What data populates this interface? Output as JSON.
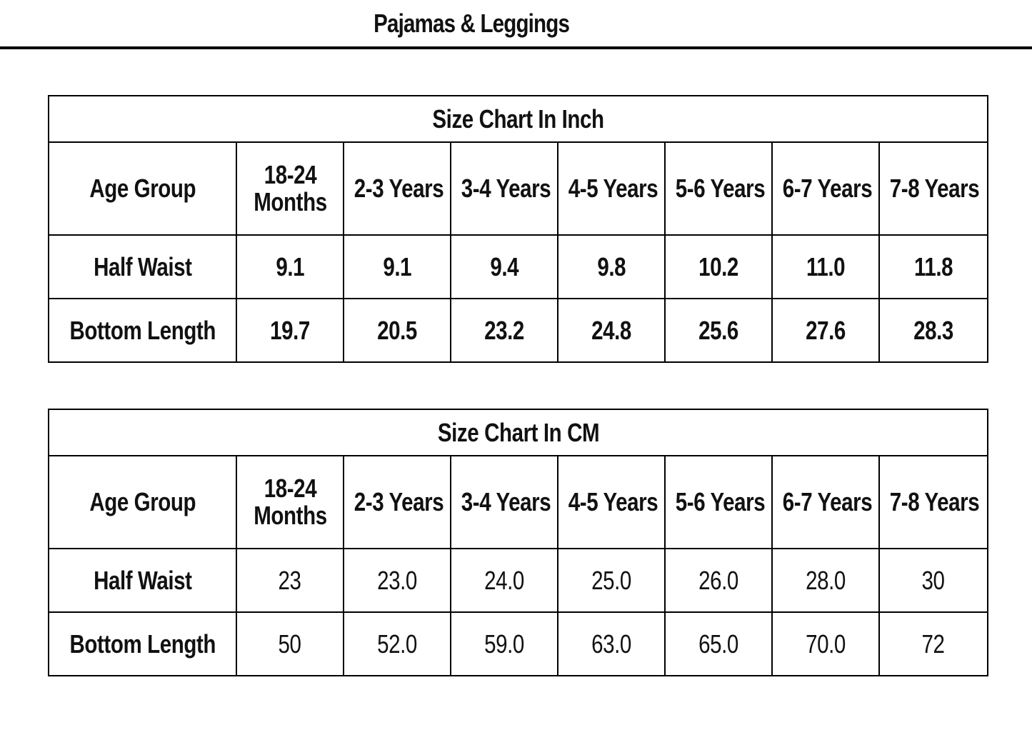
{
  "page_title": "Pajamas & Leggings",
  "tables": [
    {
      "title": "Size Chart In Inch",
      "header_label": "Age Group",
      "columns": [
        {
          "line1": "18-24",
          "line2": "Months"
        },
        {
          "line1": "2-3 Years",
          "line2": ""
        },
        {
          "line1": "3-4 Years",
          "line2": ""
        },
        {
          "line1": "4-5 Years",
          "line2": ""
        },
        {
          "line1": "5-6 Years",
          "line2": ""
        },
        {
          "line1": "6-7 Years",
          "line2": ""
        },
        {
          "line1": "7-8 Years",
          "line2": ""
        }
      ],
      "rows": [
        {
          "label": "Half Waist",
          "values": [
            "9.1",
            "9.1",
            "9.4",
            "9.8",
            "10.2",
            "11.0",
            "11.8"
          ]
        },
        {
          "label": "Bottom Length",
          "values": [
            "19.7",
            "20.5",
            "23.2",
            "24.8",
            "25.6",
            "27.6",
            "28.3"
          ]
        }
      ]
    },
    {
      "title": "Size Chart In CM",
      "header_label": "Age Group",
      "columns": [
        {
          "line1": "18-24",
          "line2": "Months"
        },
        {
          "line1": "2-3 Years",
          "line2": ""
        },
        {
          "line1": "3-4 Years",
          "line2": ""
        },
        {
          "line1": "4-5 Years",
          "line2": ""
        },
        {
          "line1": "5-6 Years",
          "line2": ""
        },
        {
          "line1": "6-7 Years",
          "line2": ""
        },
        {
          "line1": "7-8 Years",
          "line2": ""
        }
      ],
      "rows": [
        {
          "label": "Half Waist",
          "values": [
            "23",
            "23.0",
            "24.0",
            "25.0",
            "26.0",
            "28.0",
            "30"
          ]
        },
        {
          "label": "Bottom Length",
          "values": [
            "50",
            "52.0",
            "59.0",
            "63.0",
            "65.0",
            "70.0",
            "72"
          ]
        }
      ]
    }
  ]
}
